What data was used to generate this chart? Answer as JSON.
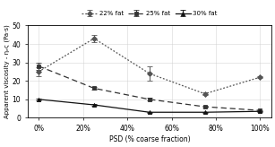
{
  "x": [
    0,
    25,
    50,
    75,
    100
  ],
  "series": {
    "22% fat": {
      "y": [
        25,
        43,
        24,
        13,
        22
      ],
      "yerr": [
        2.5,
        2.0,
        4.0,
        0.8,
        0.5
      ],
      "linestyle": "dotted",
      "marker": "D",
      "color": "#555555"
    },
    "25% fat": {
      "y": [
        28,
        16,
        10,
        6,
        4
      ],
      "yerr": [
        2.0,
        0.8,
        0.8,
        0.5,
        0.3
      ],
      "linestyle": "dashed",
      "marker": "s",
      "color": "#333333"
    },
    "30% fat": {
      "y": [
        10,
        7,
        3,
        3,
        3.5
      ],
      "yerr": [
        0.5,
        0.4,
        0.3,
        0.3,
        0.2
      ],
      "linestyle": "solid",
      "marker": "^",
      "color": "#111111"
    }
  },
  "xlabel": "PSD (% coarse fraction)",
  "ylabel": "Apparent viscosity - ηₑς (Pa·s)",
  "ylim": [
    0,
    50
  ],
  "yticks": [
    0,
    10,
    20,
    30,
    40,
    50
  ],
  "xtick_labels": [
    "0%",
    "20%",
    "40%",
    "60%",
    "80%",
    "100%"
  ],
  "xtick_positions": [
    0,
    20,
    40,
    60,
    80,
    100
  ],
  "background_color": "#ffffff",
  "grid_color": "#cccccc"
}
